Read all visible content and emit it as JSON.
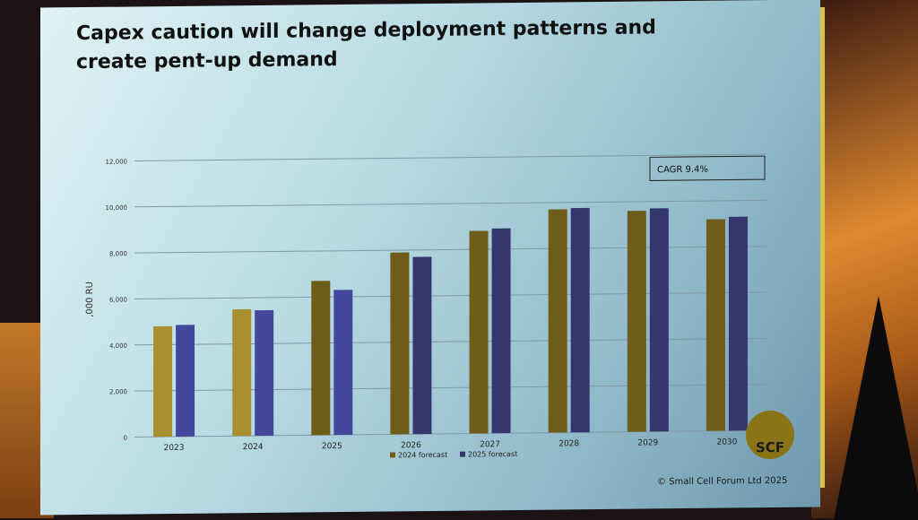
{
  "slide": {
    "title": "Capex caution will change deployment patterns and create pent-up demand",
    "copyright": "© Small Cell Forum  Ltd 2025",
    "logo_text": "SCF"
  },
  "chart_data": {
    "type": "bar",
    "title": "",
    "xlabel": "",
    "ylabel": ",000 RU",
    "ylim": [
      0,
      12000
    ],
    "yticks": [
      "0",
      "2,000",
      "4,000",
      "6,000",
      "8,000",
      "10,000",
      "12,000"
    ],
    "grid": true,
    "legend_position": "bottom",
    "annotation": "CAGR 9.4%",
    "categories": [
      "2023",
      "2024",
      "2025",
      "2026",
      "2027",
      "2028",
      "2029",
      "2030"
    ],
    "series": [
      {
        "name": "2024 forecast",
        "color": "#a89030",
        "values": [
          4800,
          5500,
          6700,
          7900,
          8800,
          9700,
          9600,
          9200
        ]
      },
      {
        "name": "2025 forecast",
        "color": "#45479a",
        "values": [
          4850,
          5450,
          6300,
          7700,
          8900,
          9750,
          9700,
          9300
        ]
      }
    ]
  }
}
